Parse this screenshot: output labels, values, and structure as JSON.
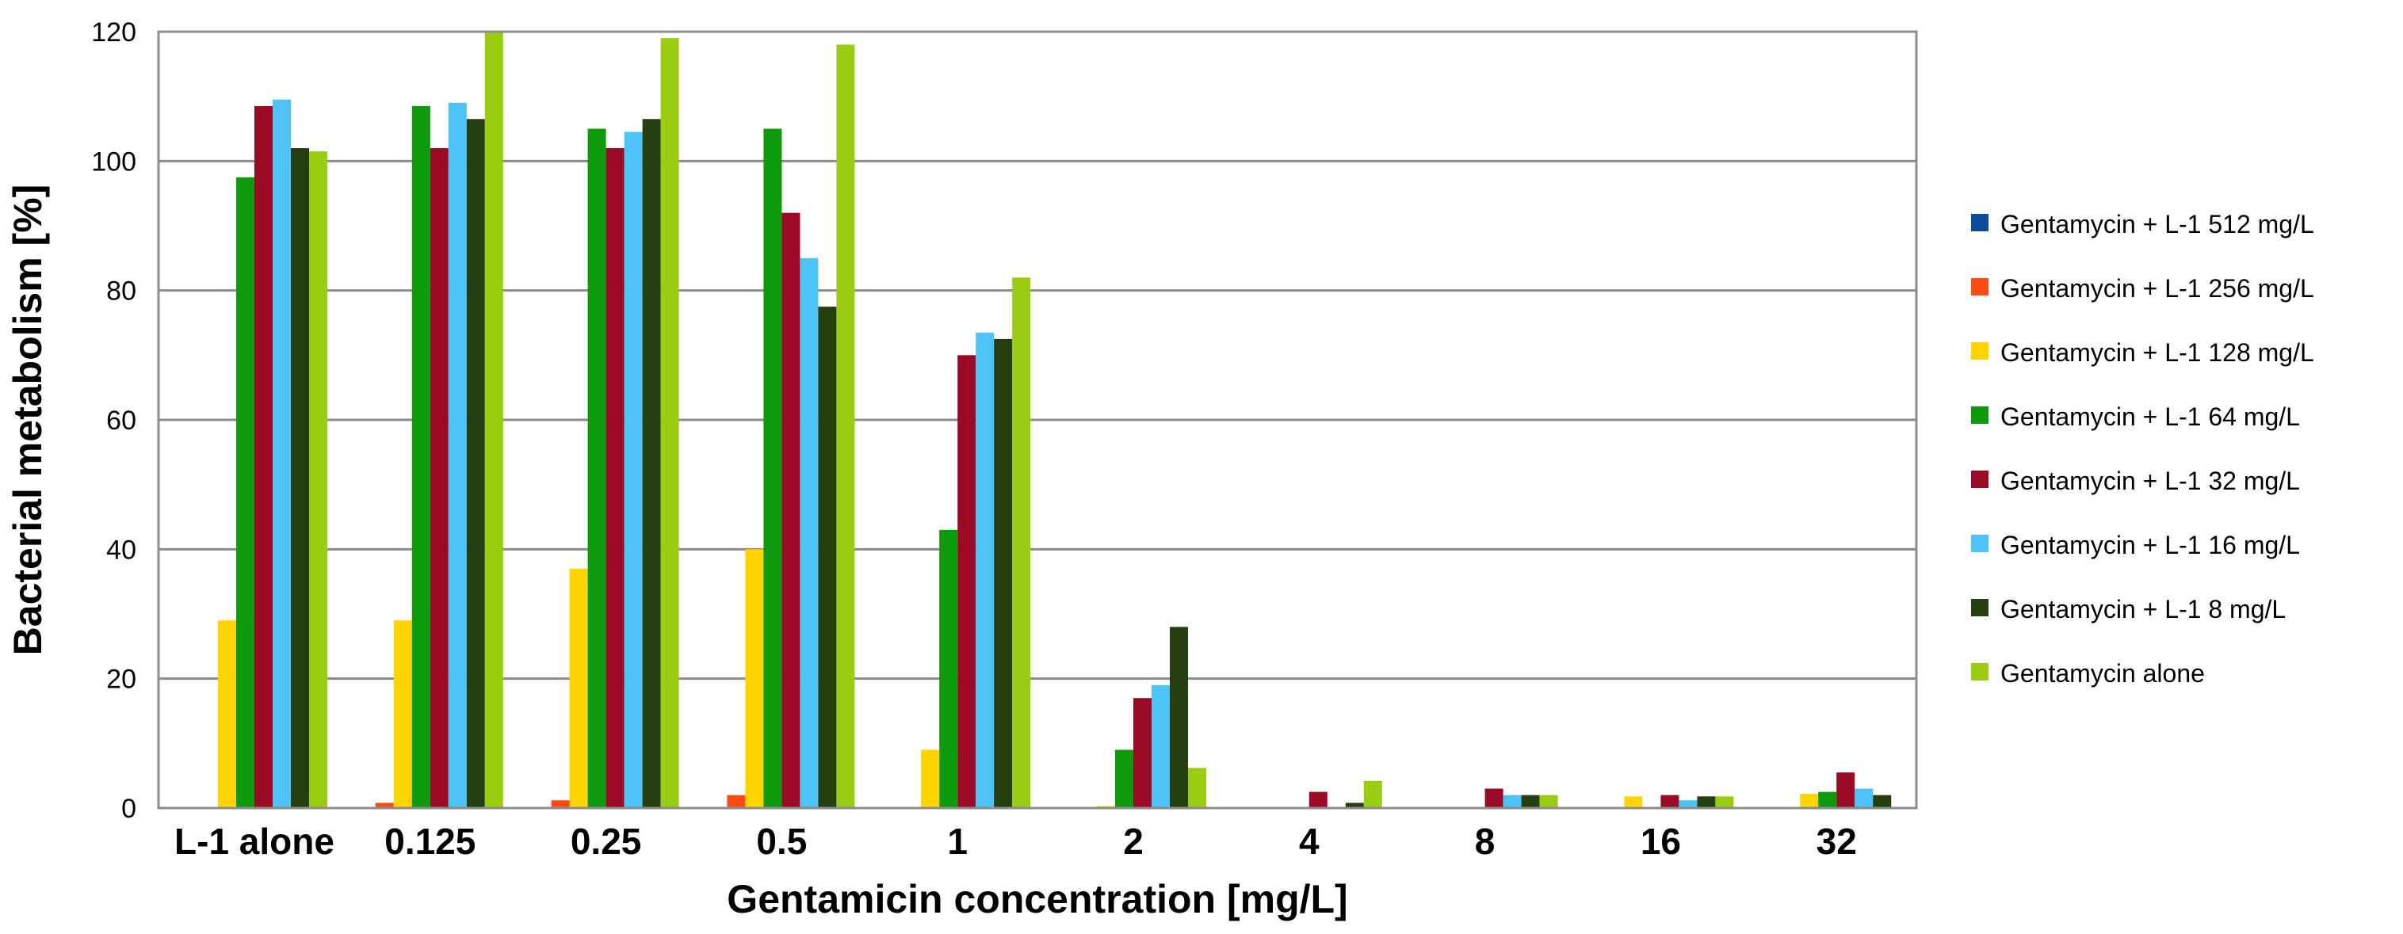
{
  "chart_data": {
    "type": "bar",
    "title": "",
    "xlabel": "Gentamicin concentration [mg/L]",
    "ylabel": "Bacterial metabolism [%]",
    "ylim": [
      0,
      120
    ],
    "yticks": [
      0,
      20,
      40,
      60,
      80,
      100,
      120
    ],
    "grid": true,
    "legend_position": "right",
    "categories": [
      "L-1 alone",
      "0.125",
      "0.25",
      "0.5",
      "1",
      "2",
      "4",
      "8",
      "16",
      "32"
    ],
    "series": [
      {
        "name": "Gentamycin + L-1 512 mg/L",
        "color": "#0B4C9C",
        "values": [
          0,
          0,
          0,
          0,
          0,
          0,
          0,
          0,
          0,
          0
        ]
      },
      {
        "name": "Gentamycin + L-1 256 mg/L",
        "color": "#FF4A12",
        "values": [
          0,
          0.8,
          1.2,
          2.0,
          0,
          0,
          0,
          0,
          0,
          0
        ]
      },
      {
        "name": "Gentamycin + L-1 128 mg/L",
        "color": "#FFD400",
        "values": [
          29,
          29,
          37,
          40,
          9,
          0.3,
          0,
          0,
          1.8,
          2.2
        ]
      },
      {
        "name": "Gentamycin + L-1 64 mg/L",
        "color": "#0D9B0D",
        "values": [
          97.5,
          108.5,
          105,
          105,
          43,
          9,
          0,
          0,
          0,
          2.5
        ]
      },
      {
        "name": "Gentamycin + L-1 32 mg/L",
        "color": "#9B0A24",
        "values": [
          108.5,
          102,
          102,
          92,
          70,
          17,
          2.5,
          3,
          2,
          5.5
        ]
      },
      {
        "name": "Gentamycin + L-1 16 mg/L",
        "color": "#4DC3F7",
        "values": [
          109.5,
          109,
          104.5,
          85,
          73.5,
          19,
          0,
          2,
          1.2,
          3
        ]
      },
      {
        "name": "Gentamycin + L-1 8 mg/L",
        "color": "#253F10",
        "values": [
          102,
          106.5,
          106.5,
          77.5,
          72.5,
          28,
          0.8,
          2,
          1.8,
          2
        ]
      },
      {
        "name": "Gentamycin alone",
        "color": "#9ACD12",
        "values": [
          101.5,
          120,
          119,
          118,
          82,
          6.2,
          4.2,
          2,
          1.8,
          0
        ]
      }
    ]
  }
}
